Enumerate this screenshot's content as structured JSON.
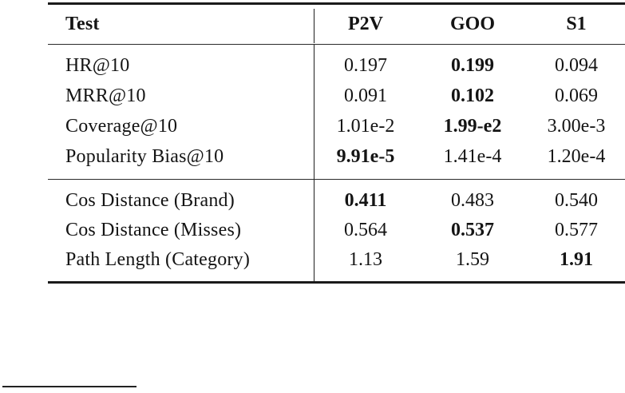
{
  "table": {
    "header": {
      "label": "Test",
      "columns": [
        "P2V",
        "GOO",
        "S1"
      ]
    },
    "sections": [
      {
        "rows": [
          {
            "label": "HR@10",
            "values": [
              "0.197",
              "0.199",
              "0.094"
            ],
            "bold": [
              false,
              true,
              false
            ]
          },
          {
            "label": "MRR@10",
            "values": [
              "0.091",
              "0.102",
              "0.069"
            ],
            "bold": [
              false,
              true,
              false
            ]
          },
          {
            "label": "Coverage@10",
            "values": [
              "1.01e-2",
              "1.99-e2",
              "3.00e-3"
            ],
            "bold": [
              false,
              true,
              false
            ]
          },
          {
            "label": "Popularity Bias@10",
            "values": [
              "9.91e-5",
              "1.41e-4",
              "1.20e-4"
            ],
            "bold": [
              true,
              false,
              false
            ]
          }
        ]
      },
      {
        "rows": [
          {
            "label": "Cos Distance (Brand)",
            "values": [
              "0.411",
              "0.483",
              "0.540"
            ],
            "bold": [
              true,
              false,
              false
            ]
          },
          {
            "label": "Cos Distance (Misses)",
            "values": [
              "0.564",
              "0.537",
              "0.577"
            ],
            "bold": [
              false,
              true,
              false
            ]
          },
          {
            "label": "Path Length (Category)",
            "values": [
              "1.13",
              "1.59",
              "1.91"
            ],
            "bold": [
              false,
              false,
              true
            ]
          }
        ]
      }
    ]
  },
  "colors": {
    "text": "#141414",
    "rule": "#1a1a1a",
    "background": "#ffffff"
  }
}
